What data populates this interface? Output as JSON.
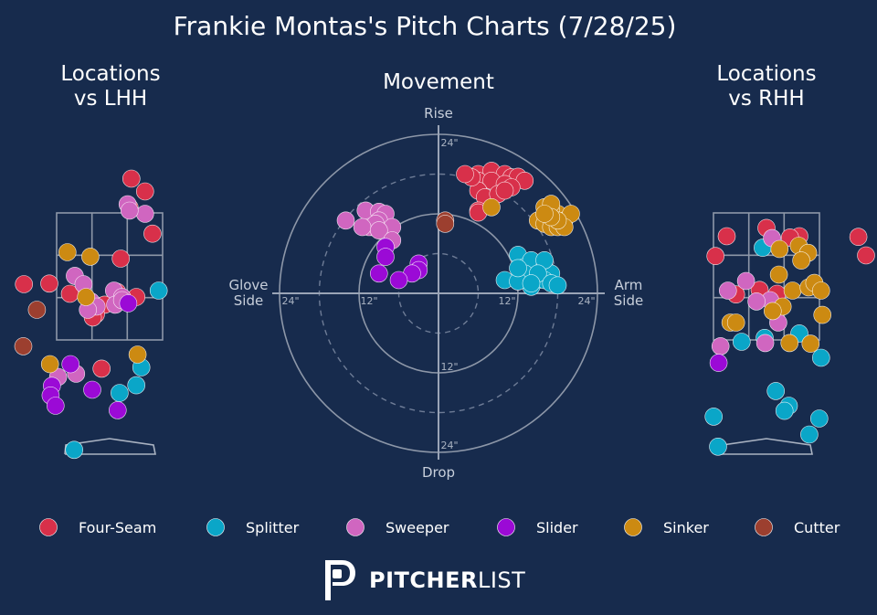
{
  "title": "Frankie Montas's Pitch Charts (7/28/25)",
  "colors": {
    "background": "#172b4d",
    "Four-Seam": "#d8304a",
    "Splitter": "#0aa6c8",
    "Sweeper": "#d066c0",
    "Slider": "#9b0ad6",
    "Sinker": "#cc8a12",
    "Cutter": "#9c3f2f"
  },
  "brand": {
    "part1": "PITCHER",
    "part2": "LIST"
  },
  "legend": [
    "Four-Seam",
    "Splitter",
    "Sweeper",
    "Slider",
    "Sinker",
    "Cutter"
  ],
  "chart_data": [
    {
      "type": "scatter",
      "title": "Locations\nvs LHH",
      "xlabel": "",
      "ylabel": "",
      "series": [
        {
          "name": "Four-Seam",
          "points": [
            [
              0.35,
              4.85
            ],
            [
              0.57,
              4.65
            ],
            [
              0.32,
              4.4
            ],
            [
              0.69,
              3.99
            ],
            [
              0.18,
              3.6
            ],
            [
              -1.38,
              3.2
            ],
            [
              -0.97,
              3.21
            ],
            [
              -0.64,
              3.05
            ],
            [
              0.12,
              3.08
            ],
            [
              -0.08,
              2.88
            ],
            [
              -0.22,
              2.73
            ],
            [
              -0.27,
              2.68
            ],
            [
              0.43,
              3.0
            ],
            [
              -0.13,
              1.88
            ]
          ]
        },
        {
          "name": "Splitter",
          "points": [
            [
              0.79,
              3.1
            ],
            [
              0.51,
              1.9
            ],
            [
              0.43,
              1.62
            ],
            [
              0.16,
              1.5
            ],
            [
              -0.57,
              0.61
            ]
          ]
        },
        {
          "name": "Sweeper",
          "points": [
            [
              0.57,
              4.3
            ],
            [
              0.29,
              4.45
            ],
            [
              0.32,
              4.35
            ],
            [
              -0.56,
              3.33
            ],
            [
              -0.42,
              3.2
            ],
            [
              0.07,
              3.1
            ],
            [
              -0.3,
              2.93
            ],
            [
              0.2,
              3.0
            ],
            [
              0.09,
              2.88
            ],
            [
              -0.21,
              2.85
            ],
            [
              -0.35,
              2.8
            ],
            [
              0.2,
              2.95
            ],
            [
              -0.83,
              1.75
            ],
            [
              -0.54,
              1.8
            ]
          ]
        },
        {
          "name": "Slider",
          "points": [
            [
              -0.63,
              1.95
            ],
            [
              -0.93,
              1.61
            ],
            [
              -0.28,
              1.55
            ],
            [
              -0.95,
              1.46
            ],
            [
              0.13,
              1.23
            ],
            [
              0.3,
              2.9
            ],
            [
              -0.87,
              1.3
            ]
          ]
        },
        {
          "name": "Sinker",
          "points": [
            [
              -0.68,
              3.7
            ],
            [
              -0.31,
              3.63
            ],
            [
              -0.38,
              3.0
            ],
            [
              0.45,
              2.1
            ],
            [
              -0.96,
              1.95
            ]
          ]
        },
        {
          "name": "Cutter",
          "points": [
            [
              -1.17,
              2.8
            ],
            [
              -1.39,
              2.23
            ]
          ]
        }
      ]
    },
    {
      "type": "scatter",
      "title": "Movement",
      "labels": {
        "top": "Rise",
        "bottom": "Drop",
        "left": "Glove\nSide",
        "right": "Arm\nSide"
      },
      "ring_labels": [
        "24\"",
        "12\"",
        "12\"",
        "24\"",
        "12\"",
        "24\""
      ],
      "series": [
        {
          "name": "Four-Seam",
          "points": [
            [
              6,
              18
            ],
            [
              8,
              18.5
            ],
            [
              10,
              18
            ],
            [
              11,
              17.5
            ],
            [
              12,
              17.6
            ],
            [
              13,
              17
            ],
            [
              6,
              17
            ],
            [
              8,
              17
            ],
            [
              10,
              16.5
            ],
            [
              11,
              16
            ],
            [
              6,
              15.5
            ],
            [
              7,
              14.5
            ],
            [
              9,
              15
            ],
            [
              10,
              15.5
            ],
            [
              5,
              17.5
            ],
            [
              4,
              18
            ],
            [
              6,
              12.5
            ],
            [
              6,
              12.2
            ]
          ]
        },
        {
          "name": "Splitter",
          "points": [
            [
              12,
              5.8
            ],
            [
              13,
              4
            ],
            [
              14,
              5
            ],
            [
              16,
              4
            ],
            [
              17,
              3
            ],
            [
              16,
              5
            ],
            [
              10,
              2
            ],
            [
              13,
              2
            ],
            [
              15,
              2
            ],
            [
              14,
              1
            ],
            [
              13,
              3
            ],
            [
              16,
              2
            ],
            [
              15,
              3
            ],
            [
              17,
              1.5
            ],
            [
              12,
              1.8
            ],
            [
              18,
              1.2
            ],
            [
              12,
              3.8
            ],
            [
              14,
              1.5
            ]
          ]
        },
        {
          "name": "Sweeper",
          "points": [
            [
              -14,
              11
            ],
            [
              -11,
              12.5
            ],
            [
              -9,
              12.3
            ],
            [
              -8,
              12
            ],
            [
              -9,
              11
            ],
            [
              -7,
              10
            ],
            [
              -10,
              10
            ],
            [
              -10.5,
              10
            ],
            [
              -9.5,
              10.5
            ],
            [
              -11.5,
              10
            ],
            [
              -9,
              9.5
            ],
            [
              -7,
              8
            ]
          ]
        },
        {
          "name": "Slider",
          "points": [
            [
              -8,
              7
            ],
            [
              -8,
              5.5
            ],
            [
              -3,
              4.5
            ],
            [
              -3,
              3.5
            ],
            [
              -4,
              3
            ],
            [
              -9,
              3
            ],
            [
              -6,
              2
            ]
          ]
        },
        {
          "name": "Sinker",
          "points": [
            [
              15,
              11
            ],
            [
              16,
              10.5
            ],
            [
              17,
              10
            ],
            [
              18,
              12
            ],
            [
              19,
              11
            ],
            [
              16,
              13
            ],
            [
              17,
              12.5
            ],
            [
              18,
              10
            ],
            [
              17,
              13.5
            ],
            [
              20,
              12
            ],
            [
              19,
              10
            ],
            [
              18,
              11
            ],
            [
              8,
              13
            ],
            [
              17,
              11.5
            ],
            [
              16,
              12
            ]
          ]
        },
        {
          "name": "Cutter",
          "points": [
            [
              1,
              11
            ],
            [
              1,
              10.5
            ]
          ]
        }
      ]
    },
    {
      "type": "scatter",
      "title": "Locations\nvs RHH",
      "xlabel": "",
      "ylabel": "",
      "series": [
        {
          "name": "Four-Seam",
          "points": [
            [
              0.0,
              4.08
            ],
            [
              0.53,
              3.95
            ],
            [
              -0.64,
              3.95
            ],
            [
              0.38,
              3.93
            ],
            [
              -0.82,
              3.64
            ],
            [
              -0.11,
              3.11
            ],
            [
              0.17,
              3.05
            ],
            [
              -0.49,
              3.04
            ],
            [
              1.48,
              3.94
            ],
            [
              1.66,
              3.65
            ]
          ]
        },
        {
          "name": "Splitter",
          "points": [
            [
              -0.06,
              3.77
            ],
            [
              0.53,
              2.43
            ],
            [
              -0.03,
              2.36
            ],
            [
              -0.4,
              2.3
            ],
            [
              0.88,
              2.05
            ],
            [
              0.15,
              1.53
            ],
            [
              0.36,
              1.3
            ],
            [
              0.29,
              1.22
            ],
            [
              0.85,
              1.1
            ],
            [
              -0.85,
              1.13
            ],
            [
              0.69,
              0.85
            ],
            [
              -0.78,
              0.66
            ]
          ]
        },
        {
          "name": "Sweeper",
          "points": [
            [
              0.09,
              3.92
            ],
            [
              -0.33,
              3.25
            ],
            [
              -0.62,
              3.1
            ],
            [
              0.06,
              2.95
            ],
            [
              -0.16,
              2.93
            ],
            [
              0.19,
              2.6
            ],
            [
              -0.74,
              2.23
            ],
            [
              -0.02,
              2.28
            ]
          ]
        },
        {
          "name": "Slider",
          "points": [
            [
              -0.77,
              1.97
            ]
          ]
        },
        {
          "name": "Sinker",
          "points": [
            [
              0.52,
              3.8
            ],
            [
              0.21,
              3.75
            ],
            [
              0.67,
              3.69
            ],
            [
              0.2,
              3.35
            ],
            [
              0.56,
              3.57
            ],
            [
              0.42,
              3.1
            ],
            [
              0.68,
              3.15
            ],
            [
              0.77,
              3.22
            ],
            [
              0.26,
              2.85
            ],
            [
              0.1,
              2.78
            ],
            [
              -0.58,
              2.6
            ],
            [
              -0.49,
              2.6
            ],
            [
              0.37,
              2.28
            ],
            [
              0.71,
              2.27
            ],
            [
              0.88,
              3.1
            ],
            [
              0.9,
              2.72
            ]
          ]
        },
        {
          "name": "Cutter",
          "points": []
        }
      ]
    }
  ]
}
